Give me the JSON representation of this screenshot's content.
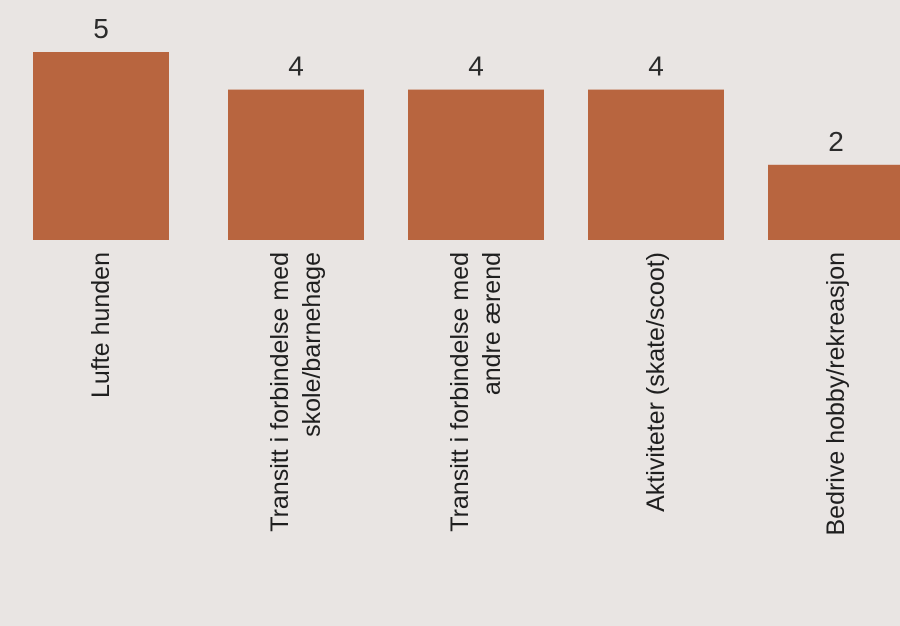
{
  "chart_data": {
    "type": "bar",
    "categories": [
      [
        "Lufte hunden"
      ],
      [
        "Transitt i forbindelse med",
        "skole/barnehage"
      ],
      [
        "Transitt i forbindelse med",
        "andre ærend"
      ],
      [
        "Aktiviteter (skate/scoot)"
      ],
      [
        "Bedrive hobby/rekreasjon"
      ]
    ],
    "values": [
      5,
      4,
      4,
      4,
      2
    ],
    "data_labels": [
      "5",
      "4",
      "4",
      "4",
      "2"
    ],
    "bar_color": "#b8653f",
    "background_color": "#e9e5e3",
    "ylim": [
      0,
      5
    ],
    "grid": false,
    "legend": "none"
  }
}
